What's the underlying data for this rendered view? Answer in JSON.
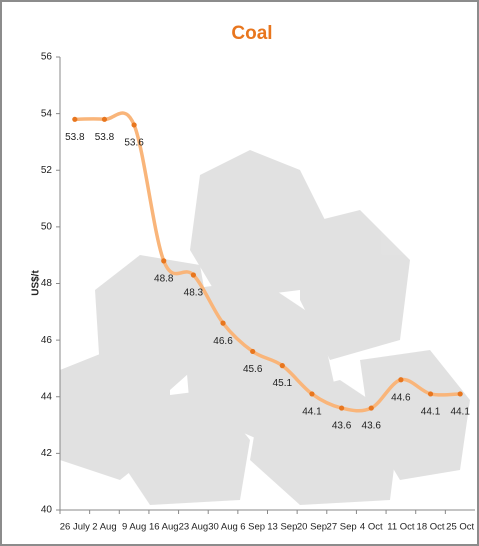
{
  "chart_data": {
    "type": "line",
    "title": "Coal",
    "y_label": "US$/t",
    "categories": [
      "26 July",
      "2 Aug",
      "9 Aug",
      "16 Aug",
      "23 Aug",
      "30 Aug",
      "6 Sep",
      "13 Sep",
      "20 Sep",
      "27 Sep",
      "4 Oct",
      "11 Oct",
      "18 Oct",
      "25 Oct"
    ],
    "series": [
      {
        "name": "Coal",
        "color": "#f9b57a",
        "marker_color": "#e8761e",
        "values": [
          53.8,
          53.8,
          53.6,
          48.8,
          48.3,
          46.6,
          45.6,
          45.1,
          44.1,
          43.6,
          43.6,
          44.6,
          44.1,
          44.1
        ]
      }
    ],
    "ylim": [
      40,
      56
    ],
    "yticks": [
      40,
      42,
      44,
      46,
      48,
      50,
      52,
      54,
      56
    ],
    "title_color": "#e8761e",
    "smooth": true
  }
}
